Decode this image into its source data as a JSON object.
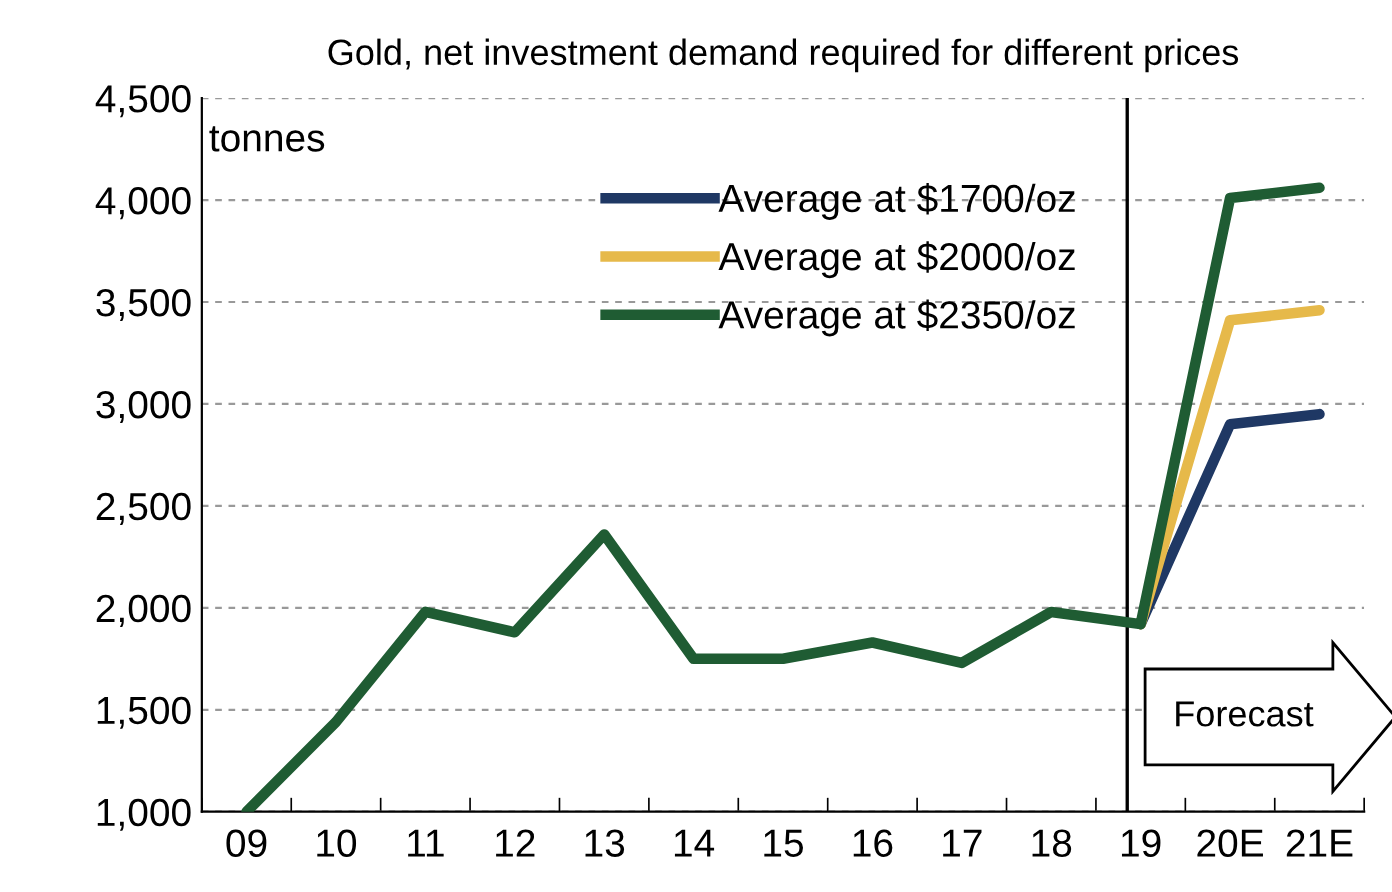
{
  "chart_data": {
    "type": "line",
    "title": "Gold, net investment demand required for different prices",
    "ylabel": "tonnes",
    "categories": [
      "09",
      "10",
      "11",
      "12",
      "13",
      "14",
      "15",
      "16",
      "17",
      "18",
      "19",
      "20E",
      "21E"
    ],
    "series": [
      {
        "name": "Average at $1700/oz",
        "color": "#1f3864",
        "values": [
          null,
          null,
          null,
          null,
          null,
          null,
          null,
          null,
          null,
          null,
          1920,
          2900,
          2950
        ]
      },
      {
        "name": "Average at $2000/oz",
        "color": "#e6b94a",
        "values": [
          null,
          null,
          null,
          null,
          null,
          null,
          null,
          null,
          null,
          null,
          1920,
          3410,
          3460
        ]
      },
      {
        "name": "Average at $2350/oz",
        "color": "#1f5c33",
        "values": [
          1000,
          1440,
          1980,
          1880,
          2360,
          1750,
          1750,
          1830,
          1730,
          1980,
          1920,
          4010,
          4060
        ]
      }
    ],
    "ylim": [
      1000,
      4500
    ],
    "yticks": [
      {
        "value": 1000,
        "label": "1,000"
      },
      {
        "value": 1500,
        "label": "1,500"
      },
      {
        "value": 2000,
        "label": "2,000"
      },
      {
        "value": 2500,
        "label": "2,500"
      },
      {
        "value": 3000,
        "label": "3,000"
      },
      {
        "value": 3500,
        "label": "3,500"
      },
      {
        "value": 4000,
        "label": "4,000"
      },
      {
        "value": 4500,
        "label": "4,500"
      }
    ],
    "grid": "y",
    "legend": "top",
    "marker": "none",
    "line_style": "solid",
    "ref_lines": [
      {
        "axis": "x",
        "value": "19",
        "color": "#000000"
      }
    ],
    "annotations": [
      "Forecast"
    ]
  }
}
